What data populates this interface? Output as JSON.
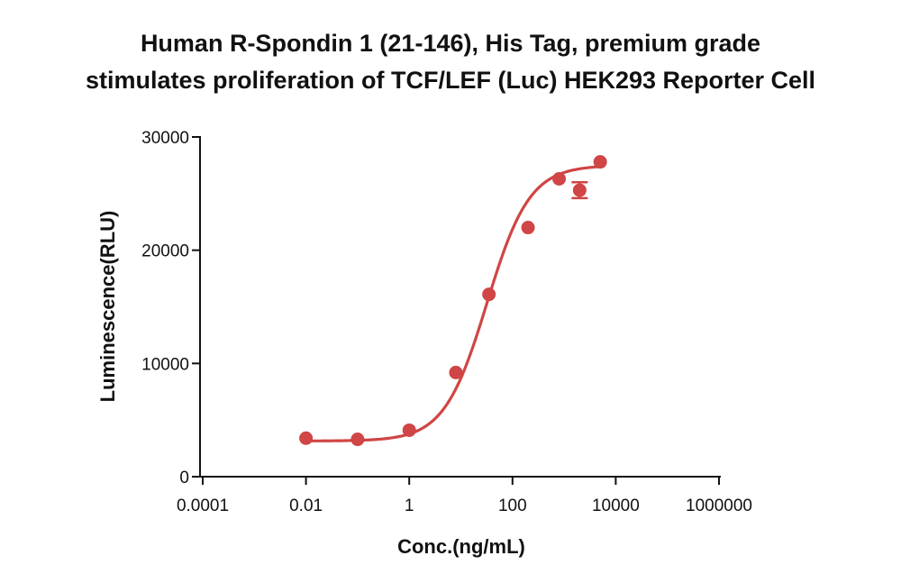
{
  "chart_data": {
    "type": "scatter",
    "title": "Human R-Spondin 1 (21-146), His Tag, premium grade",
    "subtitle": "stimulates proliferation of TCF/LEF (Luc) HEK293 Reporter Cell",
    "xlabel": "Conc.(ng/mL)",
    "ylabel": "Luminescence(RLU)",
    "x_scale": "log",
    "xlim": [
      0.0001,
      1000000
    ],
    "ylim": [
      0,
      30000
    ],
    "x_ticks": [
      0.0001,
      0.01,
      1,
      100,
      10000,
      1000000
    ],
    "x_tick_labels": [
      "0.0001",
      "0.01",
      "1",
      "100",
      "10000",
      "1000000"
    ],
    "y_ticks": [
      0,
      10000,
      20000,
      30000
    ],
    "y_tick_labels": [
      "0",
      "10000",
      "20000",
      "30000"
    ],
    "grid": false,
    "legend": "none",
    "color": "#d04545",
    "series": [
      {
        "points": [
          {
            "x": 0.01,
            "y": 3400,
            "err": 0
          },
          {
            "x": 0.1,
            "y": 3300,
            "err": 0
          },
          {
            "x": 1,
            "y": 4100,
            "err": 0
          },
          {
            "x": 8,
            "y": 9200,
            "err": 0
          },
          {
            "x": 35,
            "y": 16100,
            "err": 0
          },
          {
            "x": 200,
            "y": 22000,
            "err": 0
          },
          {
            "x": 800,
            "y": 26300,
            "err": 0
          },
          {
            "x": 2000,
            "y": 25300,
            "err": 700
          },
          {
            "x": 5000,
            "y": 27800,
            "err": 0
          }
        ],
        "fit": {
          "bottom": 3150,
          "top": 27500,
          "ec50": 32,
          "hill": 1.05
        }
      }
    ]
  }
}
